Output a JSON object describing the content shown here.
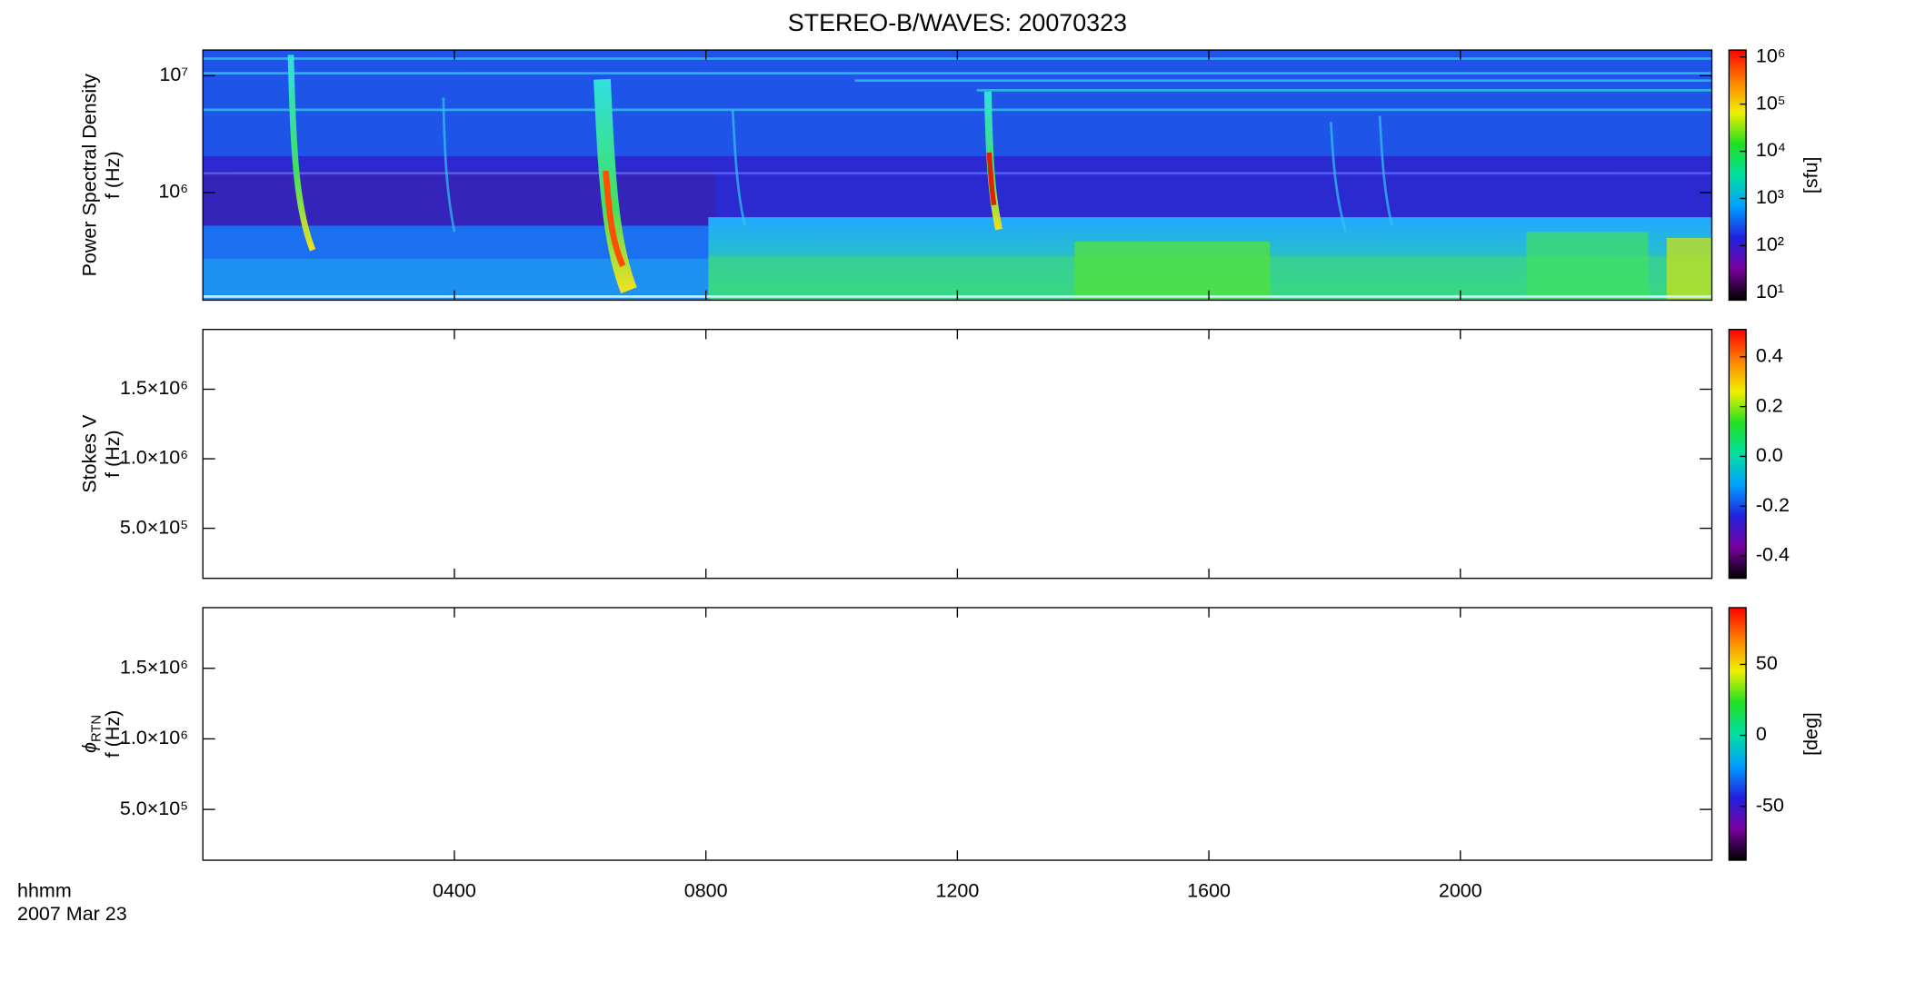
{
  "chart_data": [
    {
      "type": "spectrogram",
      "title": "STEREO-B/WAVES: 20070323",
      "ylabel": [
        "Power Spectral Density",
        "f (Hz)"
      ],
      "log_y": true,
      "xlim": [
        0,
        24
      ],
      "ylim": [
        120000,
        16600000
      ],
      "yticks": [
        {
          "value": 1000000,
          "label": "10⁶"
        },
        {
          "value": 10000000,
          "label": "10⁷"
        }
      ],
      "colorbar": {
        "label": "[sfu]",
        "log": true,
        "lim": [
          7,
          1400000
        ],
        "colormap": [
          "#000000",
          "#7a00a0",
          "#2020e0",
          "#00a0ff",
          "#00e0a0",
          "#20e020",
          "#f0f000",
          "#ff8000",
          "#ff0000"
        ],
        "ticks": [
          {
            "value": 10,
            "label": "10¹"
          },
          {
            "value": 100,
            "label": "10²"
          },
          {
            "value": 1000,
            "label": "10³"
          },
          {
            "value": 10000,
            "label": "10⁴"
          },
          {
            "value": 100000,
            "label": "10⁵"
          },
          {
            "value": 1000000,
            "label": "10⁶"
          }
        ]
      }
    },
    {
      "type": "spectrogram",
      "ylabel": [
        "Stokes V",
        "f (Hz)"
      ],
      "log_y": false,
      "xlim": [
        0,
        24
      ],
      "ylim": [
        140000,
        1930000
      ],
      "yticks": [
        {
          "value": 500000,
          "label": "5.0×10⁵"
        },
        {
          "value": 1000000,
          "label": "1.0×10⁶"
        },
        {
          "value": 1500000,
          "label": "1.5×10⁶"
        }
      ],
      "colorbar": {
        "log": false,
        "lim": [
          -0.49,
          0.51
        ],
        "colormap": [
          "#000000",
          "#7a00a0",
          "#2020e0",
          "#00a0ff",
          "#00e0a0",
          "#20e020",
          "#f0f000",
          "#ff8000",
          "#ff0000"
        ],
        "ticks": [
          -0.4,
          -0.2,
          {
            "value": 0,
            "label": "0.0"
          },
          0.2,
          0.4
        ]
      }
    },
    {
      "type": "spectrogram",
      "ylabel": [
        {
          "text": "ϕ",
          "sub": "RTN"
        },
        "f (Hz)"
      ],
      "log_y": false,
      "xlim": [
        0,
        24
      ],
      "ylim": [
        140000,
        1930000
      ],
      "yticks": [
        {
          "value": 500000,
          "label": "5.0×10⁵"
        },
        {
          "value": 1000000,
          "label": "1.0×10⁶"
        },
        {
          "value": 1500000,
          "label": "1.5×10⁶"
        }
      ],
      "colorbar": {
        "label": "[deg]",
        "log": false,
        "lim": [
          -88,
          90
        ],
        "colormap": [
          "#000000",
          "#7a00a0",
          "#2020e0",
          "#00a0ff",
          "#00e0a0",
          "#20e020",
          "#f0f000",
          "#ff8000",
          "#ff0000"
        ],
        "ticks": [
          -50,
          0,
          50
        ]
      },
      "xlabel": [
        "hhmm",
        "2007 Mar 23"
      ],
      "xticks": [
        {
          "value": 4,
          "label": "0400"
        },
        {
          "value": 8,
          "label": "0800"
        },
        {
          "value": 12,
          "label": "1200"
        },
        {
          "value": 16,
          "label": "1600"
        },
        {
          "value": 20,
          "label": "2000"
        }
      ]
    }
  ]
}
